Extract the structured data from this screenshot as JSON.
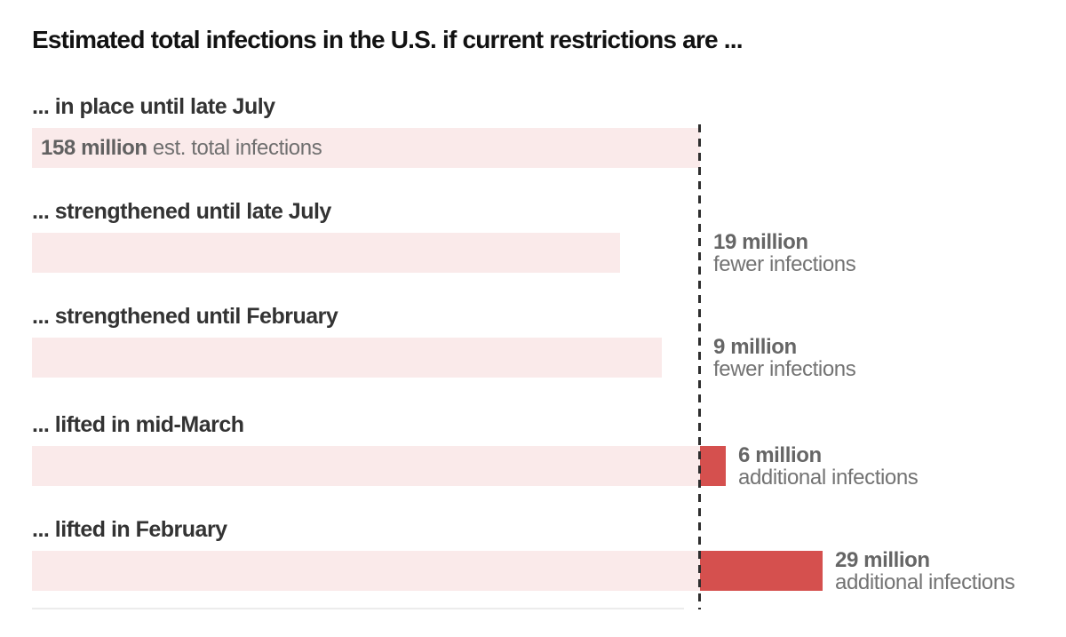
{
  "chart_data": {
    "type": "bar",
    "orientation": "horizontal",
    "title": "Estimated total infections in the U.S. if current restrictions are ...",
    "unit": "million infections",
    "baseline_total_million": 158,
    "reference_line": {
      "at_million": 158,
      "style": "dashed-vertical"
    },
    "categories": [
      "... in place until late July",
      "... strengthened until late July",
      "... strengthened until February",
      "... lifted in mid-March",
      "... lifted in February"
    ],
    "values": [
      158,
      139,
      149,
      164,
      187
    ],
    "deltas_vs_baseline_million": [
      0,
      -19,
      -9,
      6,
      29
    ],
    "xlim": [
      0,
      187
    ],
    "grid": false,
    "legend": false,
    "scenarios": [
      {
        "label": "... in place until late July",
        "total_million": 158,
        "delta_million": 0,
        "bar_label": {
          "bold": "158 million",
          "rest": " est. total infections"
        }
      },
      {
        "label": "... strengthened until late July",
        "total_million": 139,
        "delta_million": -19,
        "annotation": {
          "bold": "19 million",
          "rest": "fewer infections"
        }
      },
      {
        "label": "... strengthened until February",
        "total_million": 149,
        "delta_million": -9,
        "annotation": {
          "bold": "9 million",
          "rest": "fewer infections"
        }
      },
      {
        "label": "... lifted in mid-March",
        "total_million": 164,
        "delta_million": 6,
        "annotation": {
          "bold": "6 million",
          "rest": "additional infections"
        }
      },
      {
        "label": "... lifted in February",
        "total_million": 187,
        "delta_million": 29,
        "annotation": {
          "bold": "29 million",
          "rest": "additional infections"
        }
      }
    ],
    "colors": {
      "bar_base": "#faeaea",
      "bar_additional": "#d5504e",
      "title_text": "#121212",
      "label_text": "#333333",
      "annotation_bold_text": "#666666",
      "annotation_regular_text": "#737373",
      "reference_line_color": "#2e2e2e",
      "axis_line_color": "#ececec"
    }
  }
}
